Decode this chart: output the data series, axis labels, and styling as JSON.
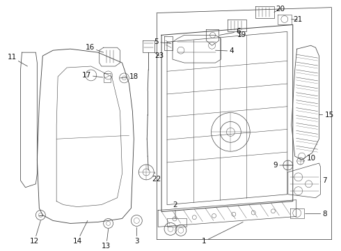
{
  "background_color": "#ffffff",
  "line_color": "#444444",
  "label_fontsize": 7.5,
  "label_color": "#111111"
}
